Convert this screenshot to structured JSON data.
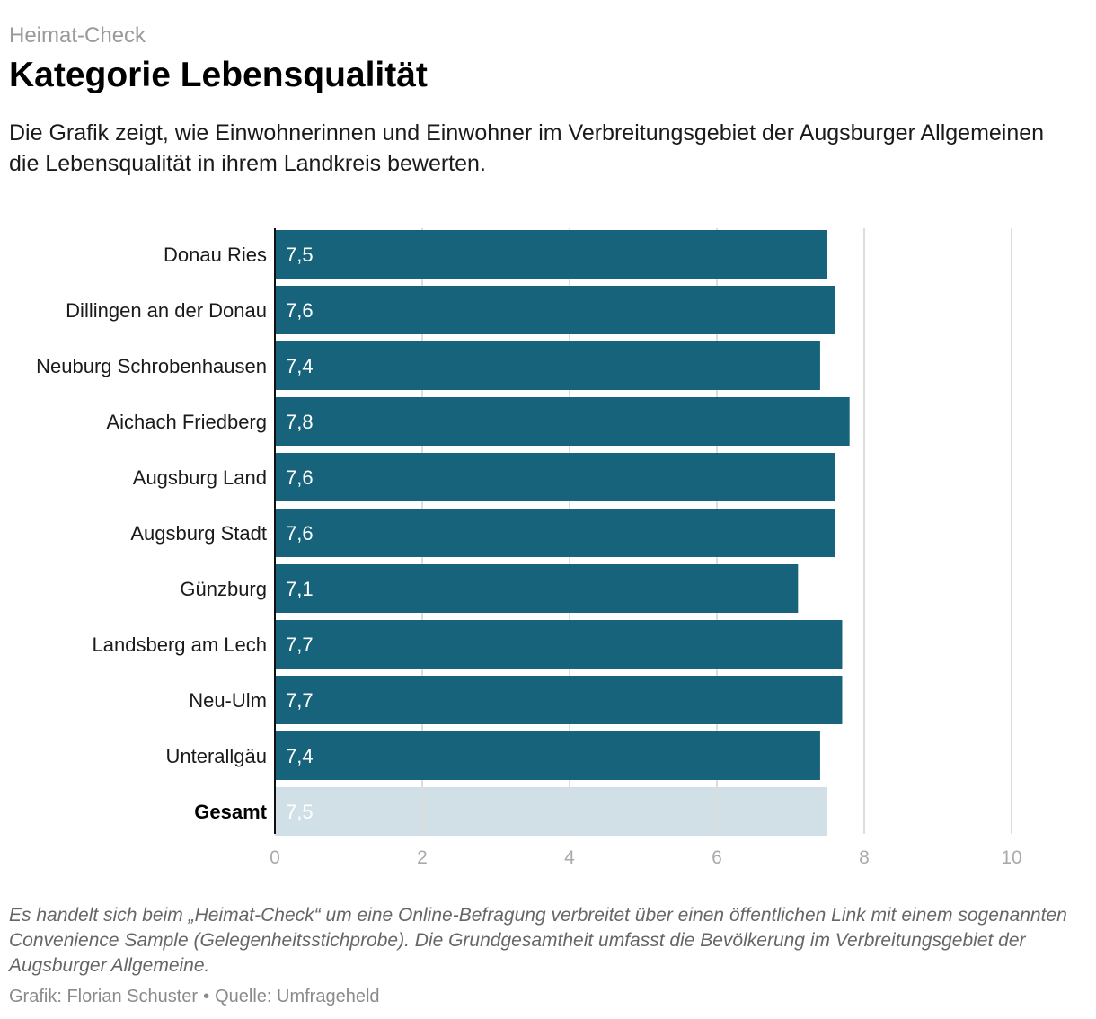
{
  "header": {
    "kicker": "Heimat-Check",
    "title": "Kategorie Lebensqualität",
    "subtitle": "Die Grafik zeigt, wie Einwohnerinnen und Einwohner im Verbreitungsgebiet der Augsburger Allgemeinen die Lebensqualität in ihrem Landkreis bewerten."
  },
  "chart_data": {
    "type": "bar",
    "orientation": "horizontal",
    "title": "Kategorie Lebensqualität",
    "categories": [
      "Donau Ries",
      "Dillingen an der Donau",
      "Neuburg Schrobenhausen",
      "Aichach Friedberg",
      "Augsburg Land",
      "Augsburg Stadt",
      "Günzburg",
      "Landsberg am Lech",
      "Neu-Ulm",
      "Unterallgäu",
      "Gesamt"
    ],
    "values": [
      7.5,
      7.6,
      7.4,
      7.8,
      7.6,
      7.6,
      7.1,
      7.7,
      7.7,
      7.4,
      7.5
    ],
    "value_labels": [
      "7,5",
      "7,6",
      "7,4",
      "7,8",
      "7,6",
      "7,6",
      "7,1",
      "7,7",
      "7,7",
      "7,4",
      "7,5"
    ],
    "highlight_category": "Gesamt",
    "xlim": [
      0,
      10
    ],
    "xticks": [
      0,
      2,
      4,
      6,
      8,
      10
    ],
    "xlabel": "",
    "ylabel": "",
    "grid": true,
    "colors": {
      "bar": "#17637c",
      "total_bar": "#d1e0e6",
      "grid": "#dddddd",
      "tick": "#aaaaaa",
      "label": "#1a1a1a"
    }
  },
  "footer": {
    "note": "Es handelt sich beim „Heimat-Check“ um eine Online-Befragung verbreitet über einen öffentlichen Link mit einem sogenannten Convenience Sample (Gelegenheitsstichprobe). Die Grundgesamtheit umfasst die Bevölkerung im Verbreitungsgebiet der Augsburger Allgemeine.",
    "credit": "Grafik: Florian Schuster",
    "source": "Quelle: Umfrageheld"
  }
}
